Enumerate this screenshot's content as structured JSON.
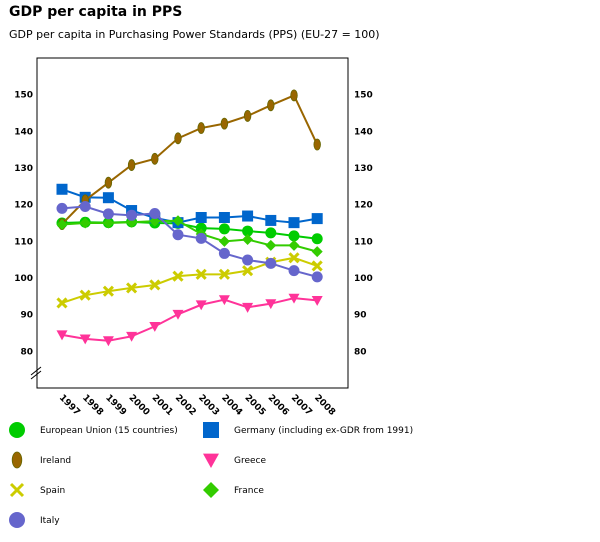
{
  "chart_data": {
    "type": "line",
    "title": "GDP per capita in PPS",
    "subtitle": "GDP per capita in Purchasing Power Standards (PPS) (EU-27 = 100)",
    "x": [
      "1997",
      "1998",
      "1999",
      "2000",
      "2001",
      "2002",
      "2003",
      "2004",
      "2005",
      "2006",
      "2007",
      "2008"
    ],
    "ylim": [
      70,
      160
    ],
    "yticks": [
      80,
      90,
      100,
      110,
      120,
      130,
      140,
      150
    ],
    "axis_break": true,
    "grid": true,
    "legend_position": "bottom",
    "series": [
      {
        "name": "European Union (15 countries)",
        "color": "#00cc00",
        "marker": "circle",
        "values": [
          115.0,
          115.2,
          115.1,
          115.3,
          115.0,
          114.9,
          113.6,
          113.4,
          112.8,
          112.3,
          111.5,
          110.7
        ]
      },
      {
        "name": "Germany (including ex-GDR from 1991)",
        "color": "#0066cc",
        "marker": "square",
        "values": [
          124.2,
          122.0,
          121.9,
          118.4,
          116.4,
          115.1,
          116.5,
          116.5,
          116.9,
          115.7,
          115.1,
          116.2
        ]
      },
      {
        "name": "Ireland",
        "color": "#996600",
        "marker": "ellipse",
        "values": [
          114.7,
          121.2,
          126.0,
          130.8,
          132.5,
          138.1,
          140.9,
          142.1,
          144.2,
          147.1,
          149.8,
          136.4
        ]
      },
      {
        "name": "Greece",
        "color": "#ff3399",
        "marker": "triangle-down",
        "values": [
          84.5,
          83.4,
          82.9,
          84.1,
          86.8,
          90.1,
          92.7,
          94.1,
          92.0,
          93.0,
          94.5,
          93.9
        ]
      },
      {
        "name": "Spain",
        "color": "#cccc00",
        "marker": "x",
        "values": [
          93.2,
          95.3,
          96.4,
          97.3,
          98.1,
          100.5,
          101.0,
          101.0,
          102.0,
          104.3,
          105.5,
          103.3
        ]
      },
      {
        "name": "France",
        "color": "#33cc00",
        "marker": "diamond",
        "values": [
          114.6,
          115.0,
          115.0,
          115.2,
          115.5,
          115.6,
          112.0,
          110.0,
          110.5,
          108.9,
          108.9,
          107.2
        ]
      },
      {
        "name": "Italy",
        "color": "#6666cc",
        "marker": "circle",
        "values": [
          119.0,
          119.5,
          117.5,
          117.1,
          117.6,
          111.8,
          110.8,
          106.7,
          104.9,
          104.0,
          102.0,
          100.3
        ]
      }
    ]
  }
}
